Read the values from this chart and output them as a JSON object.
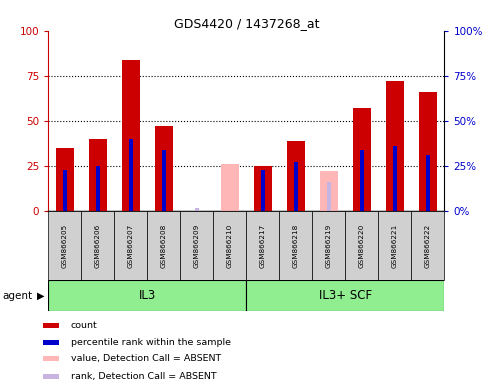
{
  "title": "GDS4420 / 1437268_at",
  "categories": [
    "GSM866205",
    "GSM866206",
    "GSM866207",
    "GSM866208",
    "GSM866209",
    "GSM866210",
    "GSM866217",
    "GSM866218",
    "GSM866219",
    "GSM866220",
    "GSM866221",
    "GSM866222"
  ],
  "group1_label": "IL3",
  "group2_label": "IL3+ SCF",
  "group1_count": 6,
  "group2_count": 6,
  "red_bars": [
    35,
    40,
    84,
    47,
    0,
    0,
    25,
    39,
    0,
    57,
    72,
    66
  ],
  "blue_bars": [
    23,
    25,
    40,
    34,
    0,
    0,
    23,
    27,
    0,
    34,
    36,
    31
  ],
  "pink_bars": [
    0,
    0,
    0,
    0,
    0,
    26,
    0,
    0,
    22,
    0,
    0,
    0
  ],
  "lavender_bars": [
    0,
    0,
    0,
    0,
    2,
    0,
    0,
    0,
    16,
    0,
    0,
    0
  ],
  "ylim": [
    0,
    100
  ],
  "yticks": [
    0,
    25,
    50,
    75,
    100
  ],
  "red_color": "#cc0000",
  "blue_color": "#0000cc",
  "pink_color": "#ffb6b6",
  "lavender_color": "#c8b4e0",
  "agent_label": "agent",
  "group_bar_color": "#90ee90",
  "tick_area_color": "#d0d0d0",
  "legend_items": [
    "count",
    "percentile rank within the sample",
    "value, Detection Call = ABSENT",
    "rank, Detection Call = ABSENT"
  ]
}
